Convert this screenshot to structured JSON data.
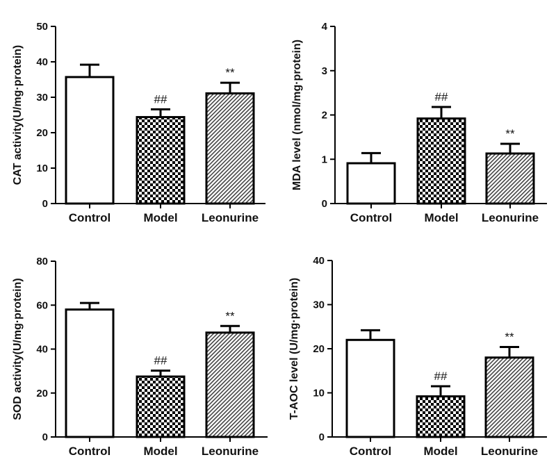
{
  "chart_data": [
    {
      "type": "bar",
      "ylabel": "CAT activity(U/mg·protein)",
      "categories": [
        "Control",
        "Model",
        "Leonurine"
      ],
      "values": [
        35.7,
        24.4,
        31.1
      ],
      "error_upper": [
        39.2,
        26.6,
        34.1
      ],
      "annotations": [
        "",
        "##",
        "**"
      ],
      "ylim": [
        0,
        50
      ],
      "yticks": [
        0,
        10,
        20,
        30,
        40,
        50
      ],
      "grid": false
    },
    {
      "type": "bar",
      "ylabel": "MDA level (nmol/mg·protein)",
      "categories": [
        "Control",
        "Model",
        "Leonurine"
      ],
      "values": [
        0.91,
        1.92,
        1.13
      ],
      "error_upper": [
        1.14,
        2.18,
        1.35
      ],
      "annotations": [
        "",
        "##",
        "**"
      ],
      "ylim": [
        0,
        4
      ],
      "yticks": [
        0,
        1,
        2,
        3,
        4
      ],
      "grid": false
    },
    {
      "type": "bar",
      "ylabel": "SOD activity(U/mg·protein)",
      "categories": [
        "Control",
        "Model",
        "Leonurine"
      ],
      "values": [
        58,
        27.5,
        47.5
      ],
      "error_upper": [
        61,
        30.2,
        50.5
      ],
      "annotations": [
        "",
        "##",
        "**"
      ],
      "ylim": [
        0,
        80
      ],
      "yticks": [
        0,
        20,
        40,
        60,
        80
      ],
      "grid": false
    },
    {
      "type": "bar",
      "ylabel": "T-AOC level (U/mg·protein)",
      "categories": [
        "Control",
        "Model",
        "Leonurine"
      ],
      "values": [
        22,
        9.2,
        18
      ],
      "error_upper": [
        24.2,
        11.5,
        20.4
      ],
      "annotations": [
        "",
        "##",
        "**"
      ],
      "ylim": [
        0,
        40
      ],
      "yticks": [
        0,
        10,
        20,
        30,
        40
      ],
      "grid": false
    }
  ],
  "fills": [
    "open",
    "checkerboard",
    "diagonal-hatch"
  ],
  "colors": {
    "stroke": "#000000",
    "background": "#ffffff"
  }
}
